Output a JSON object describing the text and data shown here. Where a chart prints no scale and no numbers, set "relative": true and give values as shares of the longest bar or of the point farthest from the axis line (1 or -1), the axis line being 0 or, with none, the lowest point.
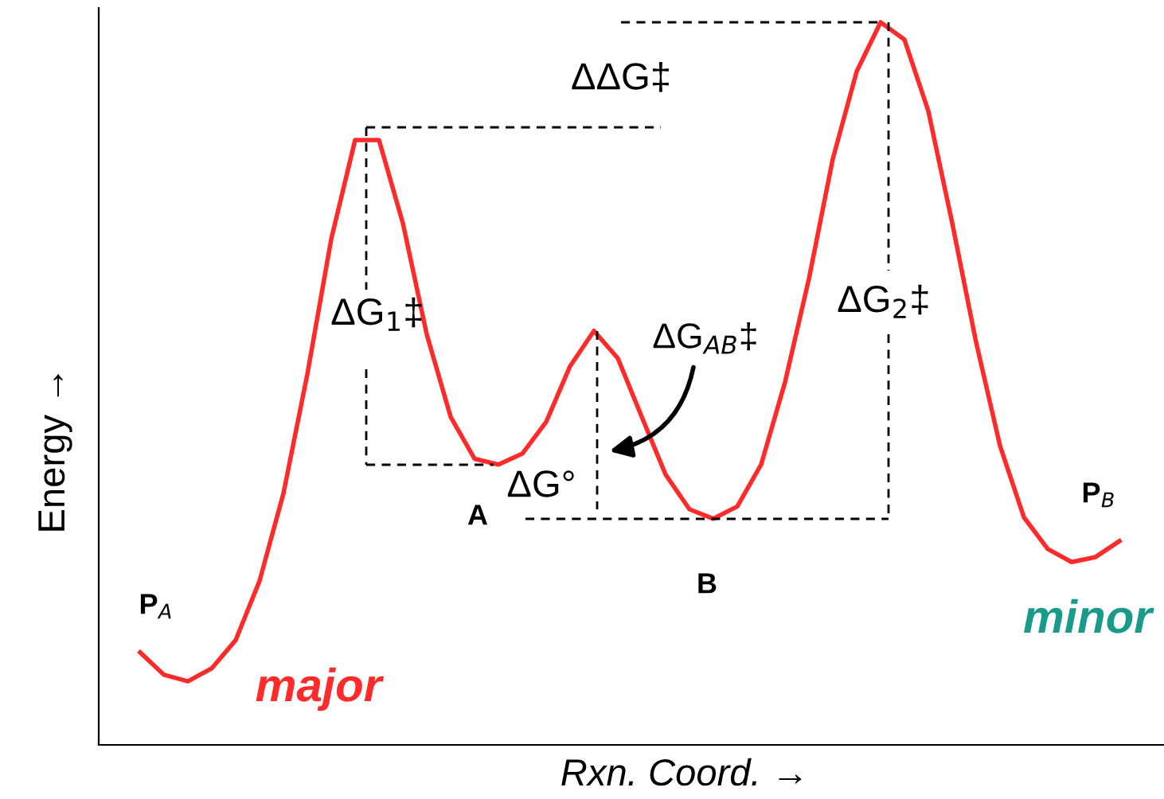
{
  "chart_data": {
    "type": "line",
    "relative": true,
    "xlabel": "Rxn. Coord. →",
    "ylabel": "Energy →",
    "legend": false,
    "marker": "none",
    "line_style": "solid",
    "categories": [
      null,
      null,
      null,
      null,
      null,
      null,
      null,
      null,
      null,
      null,
      null,
      null,
      null,
      null,
      null,
      null,
      null,
      null,
      null,
      null,
      null,
      null,
      null,
      null,
      null,
      null,
      null,
      null,
      null,
      null,
      null,
      null,
      null,
      null,
      null,
      null,
      null,
      null,
      null,
      null,
      null,
      null
    ],
    "series": [
      {
        "color": "#ff2a2a",
        "values": [
          0.128,
          0.097,
          0.088,
          0.106,
          0.145,
          0.227,
          0.348,
          0.513,
          0.7,
          0.837,
          0.837,
          0.722,
          0.568,
          0.454,
          0.396,
          0.388,
          0.403,
          0.447,
          0.524,
          0.573,
          0.535,
          0.454,
          0.374,
          0.326,
          0.313,
          0.33,
          0.388,
          0.502,
          0.645,
          0.811,
          0.932,
          1.0,
          0.976,
          0.877,
          0.722,
          0.557,
          0.414,
          0.315,
          0.271,
          0.253,
          0.26,
          0.282
        ]
      }
    ],
    "annotations": [
      "ΔΔG‡",
      "ΔG$_{1}$‡",
      "ΔG$_{AB}$‡",
      "ΔG$_{2}$‡",
      "ΔG°",
      "A",
      "B",
      "P$_{A}$",
      "P$_{B}$",
      "major",
      "minor"
    ]
  }
}
